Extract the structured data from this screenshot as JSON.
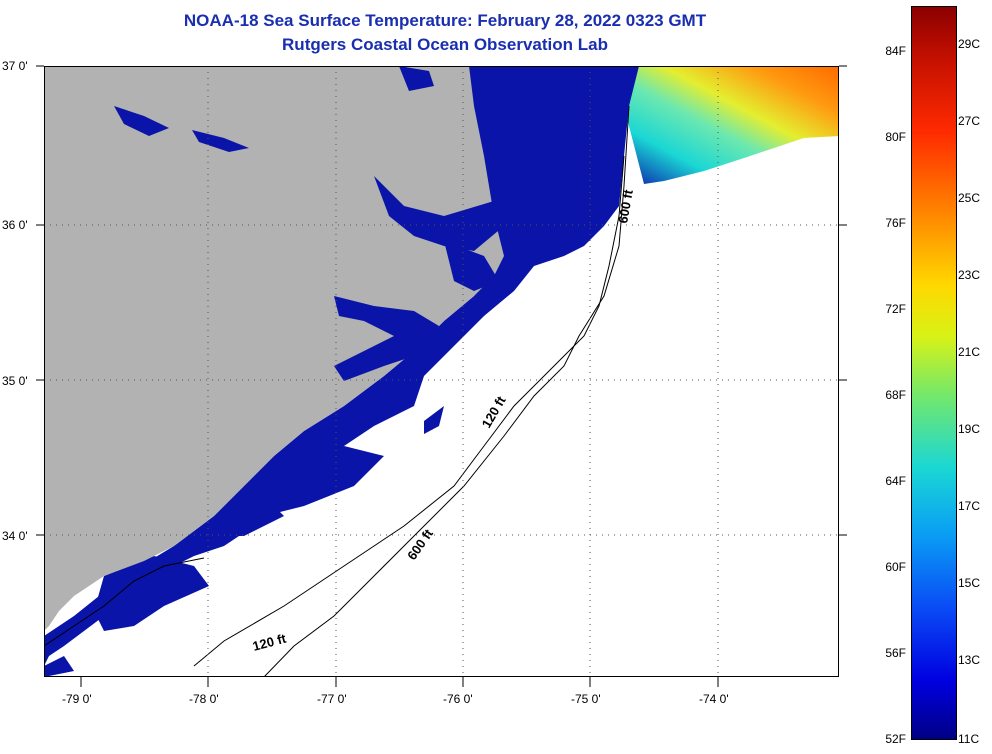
{
  "title": {
    "line1": "NOAA-18 Sea Surface Temperature:  February 28, 2022 0323 GMT",
    "line2": "Rutgers Coastal Ocean Observation Lab"
  },
  "map": {
    "lat_labels": [
      "37 0'",
      "36 0'",
      "35 0'",
      "34 0'"
    ],
    "lon_labels": [
      "-79 0'",
      "-78 0'",
      "-77 0'",
      "-76 0'",
      "-75 0'",
      "-74 0'"
    ],
    "contour_labels": [
      "600 ft",
      "120 ft",
      "600 ft",
      "120 ft"
    ],
    "colors": {
      "land": "#b2b2b2",
      "cold_water": "#0a14a8",
      "no_data": "#ffffff"
    }
  },
  "colorbar": {
    "fahrenheit": [
      "84F",
      "80F",
      "76F",
      "72F",
      "68F",
      "64F",
      "60F",
      "56F",
      "52F"
    ],
    "celsius": [
      "29C",
      "27C",
      "25C",
      "23C",
      "21C",
      "19C",
      "17C",
      "15C",
      "13C",
      "11C"
    ]
  }
}
